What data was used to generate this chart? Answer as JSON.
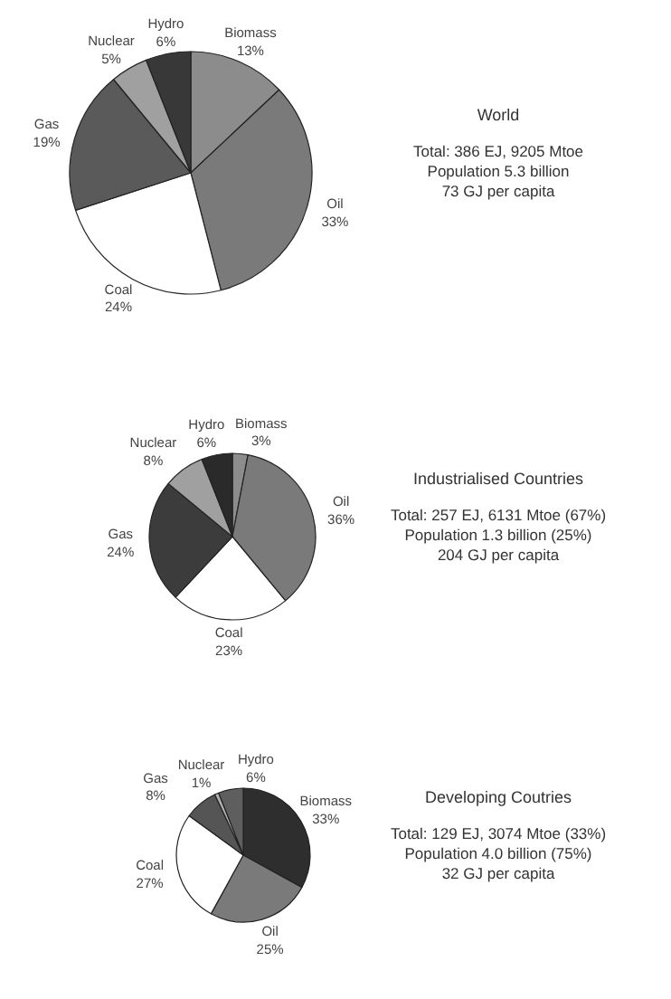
{
  "chart_data": [
    {
      "type": "pie",
      "title": "World",
      "categories": [
        "Biomass",
        "Oil",
        "Coal",
        "Gas",
        "Nuclear",
        "Hydro"
      ],
      "values": [
        13,
        33,
        24,
        19,
        5,
        6
      ],
      "value_labels": [
        "13%",
        "33%",
        "24%",
        "19%",
        "5%",
        "6%"
      ],
      "colors": [
        "#8c8c8c",
        "#7a7a7a",
        "#ffffff",
        "#5a5a5a",
        "#a0a0a0",
        "#383838"
      ],
      "annotations": [
        "Total: 386 EJ, 9205 Mtoe",
        "Population 5.3 billion",
        "73 GJ per capita"
      ]
    },
    {
      "type": "pie",
      "title": "Industrialised Countries",
      "categories": [
        "Biomass",
        "Oil",
        "Coal",
        "Gas",
        "Nuclear",
        "Hydro"
      ],
      "values": [
        3,
        36,
        23,
        24,
        8,
        6
      ],
      "value_labels": [
        "3%",
        "36%",
        "23%",
        "24%",
        "8%",
        "6%"
      ],
      "colors": [
        "#8c8c8c",
        "#7a7a7a",
        "#ffffff",
        "#3c3c3c",
        "#a0a0a0",
        "#2a2a2a"
      ],
      "annotations": [
        "Total: 257 EJ, 6131 Mtoe (67%)",
        "Population 1.3 billion (25%)",
        "204 GJ per capita"
      ]
    },
    {
      "type": "pie",
      "title": "Developing Coutries",
      "categories": [
        "Biomass",
        "Oil",
        "Coal",
        "Gas",
        "Nuclear",
        "Hydro"
      ],
      "values": [
        33,
        25,
        27,
        8,
        1,
        6
      ],
      "value_labels": [
        "33%",
        "25%",
        "27%",
        "8%",
        "1%",
        "6%"
      ],
      "colors": [
        "#2e2e2e",
        "#7a7a7a",
        "#ffffff",
        "#555555",
        "#b0b0b0",
        "#5e5e5e"
      ],
      "annotations": [
        "Total: 129 EJ, 3074 Mtoe (33%)",
        "Population 4.0 billion (75%)",
        "32 GJ per capita"
      ]
    }
  ]
}
